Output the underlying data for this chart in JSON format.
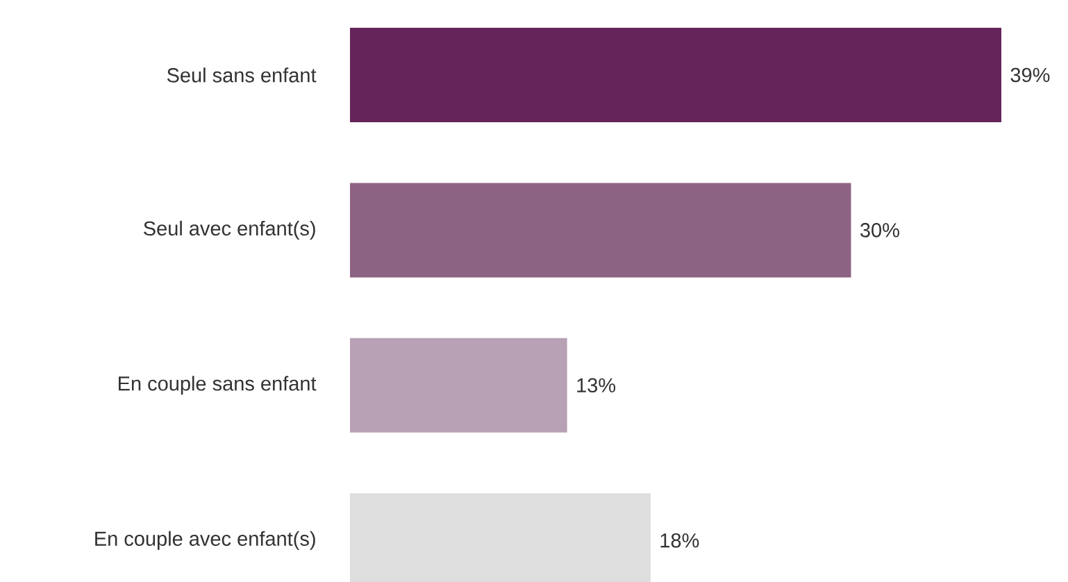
{
  "chart_data": {
    "type": "bar",
    "orientation": "horizontal",
    "categories": [
      "Seul sans enfant",
      "Seul avec enfant(s)",
      "En couple sans enfant",
      "En couple avec enfant(s)"
    ],
    "values": [
      39,
      30,
      13,
      18
    ],
    "colors": [
      "#65245a",
      "#8d6384",
      "#b8a0b5",
      "#dedede"
    ],
    "value_labels": [
      "39%",
      "30%",
      "13%",
      "18%"
    ]
  }
}
